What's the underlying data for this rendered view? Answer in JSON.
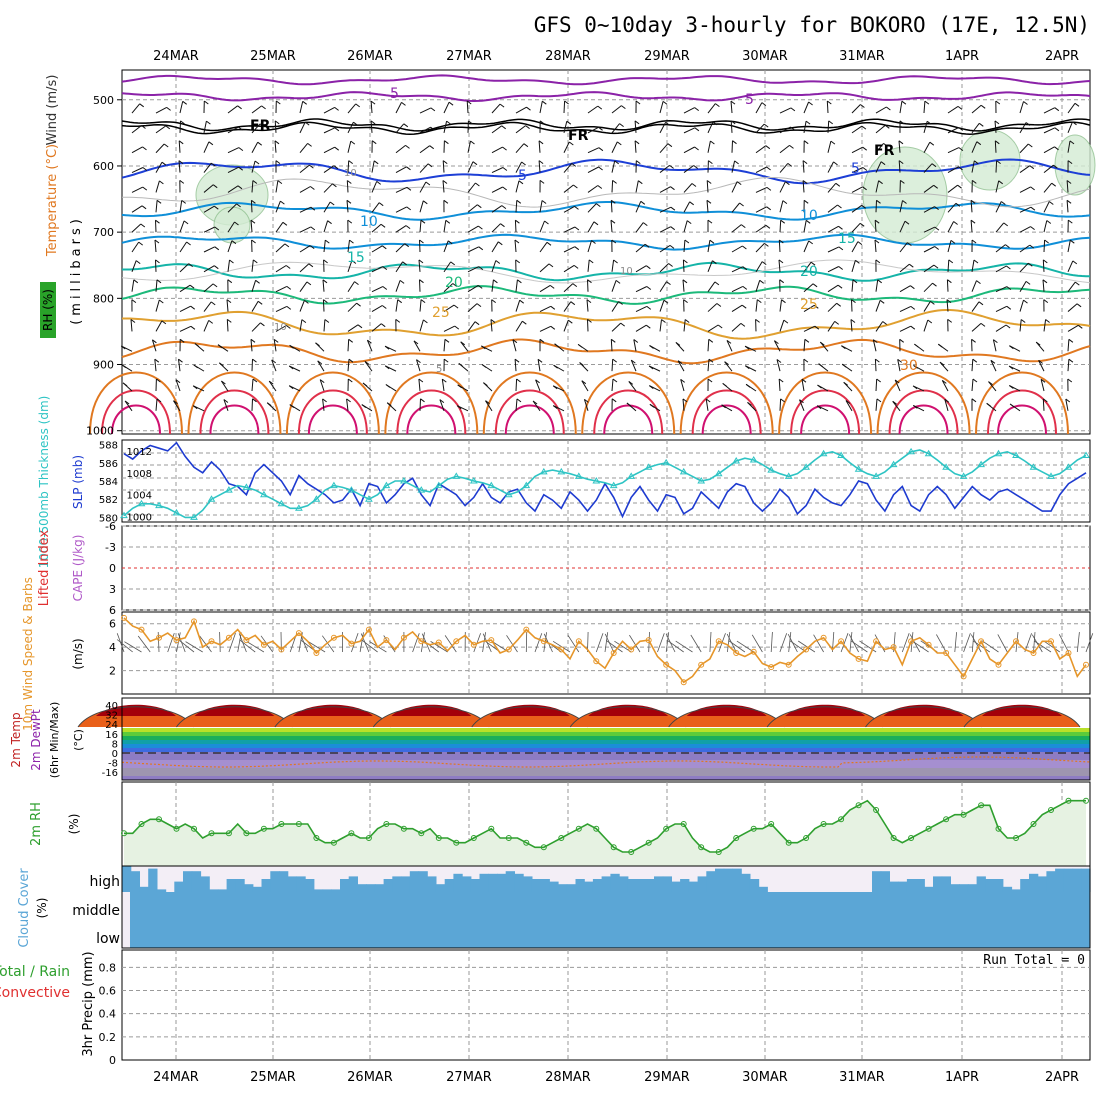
{
  "title": "GFS 0~10day 3-hourly for BOKORO (17E, 12.5N)",
  "dates": [
    "24MAR",
    "25MAR",
    "26MAR",
    "27MAR",
    "28MAR",
    "29MAR",
    "30MAR",
    "31MAR",
    "1APR",
    "2APR"
  ],
  "colors": {
    "purple": "#8B22A8",
    "black": "#000000",
    "blue": "#1D3FD6",
    "lightblue": "#0F8FD8",
    "teal": "#15B4A8",
    "green": "#1CB97A",
    "orange": "#E0A030",
    "darkorange": "#E07820",
    "red": "#E0304A",
    "magenta": "#D01070",
    "slp": "#1E3BD0",
    "thickness": "#2EC4C4",
    "wind": "#E6962A",
    "rh": "#2E9F2E",
    "cloud": "#5BA6D6",
    "grid": "#9a9a9a"
  },
  "panels": {
    "upper": {
      "ylabels": [
        "Wind (m/s)",
        "Temperature (°C)",
        "(millibars)",
        "RH (%)"
      ],
      "ticks": [
        "500",
        "600",
        "700",
        "800",
        "900",
        "1000"
      ],
      "contour_labels": [
        "5",
        "FR",
        "FR",
        "FR",
        "5",
        "5",
        "5",
        "10",
        "10",
        "15",
        "15",
        "20",
        "20",
        "25",
        "25",
        "30",
        "10",
        "10",
        "10",
        "5"
      ]
    },
    "slp": {
      "ylabels": [
        "1000-500mb Thickness (dm)",
        "SLP (mb)"
      ],
      "ticks_left": [
        "588",
        "586",
        "584",
        "582",
        "580"
      ],
      "ticks_right": [
        "1012",
        "1008",
        "1004",
        "1000"
      ]
    },
    "li": {
      "ylabels": [
        "Lifted Index",
        "CAPE (J/kg)"
      ],
      "ticks": [
        "-6",
        "-3",
        "0",
        "3",
        "6"
      ]
    },
    "wind": {
      "ylabels": [
        "10m Wind Speed & Barbs",
        "(m/s)"
      ],
      "ticks": [
        "6",
        "4",
        "2"
      ]
    },
    "temp": {
      "ylabels": [
        "2m Temp",
        "2m DewPt",
        "(6hr Min/Max)",
        "(°C)"
      ],
      "ticks": [
        "40",
        "32",
        "24",
        "16",
        "8",
        "0",
        "-8",
        "-16"
      ]
    },
    "rh": {
      "ylabels": [
        "2m RH",
        "(%)"
      ]
    },
    "cloud": {
      "ylabels": [
        "Cloud Cover",
        "(%)"
      ],
      "levels": [
        "high",
        "middle",
        "low"
      ]
    },
    "precip": {
      "ylabels": [
        "Total / Rain",
        "Convective",
        "3hr Precip (mm)"
      ],
      "ticks": [
        "0.8",
        "0.6",
        "0.4",
        "0.2",
        "0"
      ],
      "run_total": "Run Total = 0"
    }
  },
  "chart_data": [
    {
      "type": "line",
      "name": "SLP (mb)",
      "ylim": [
        999,
        1014
      ],
      "values": [
        1011.5,
        1010.5,
        1012.0,
        1013.0,
        1012.5,
        1012.0,
        1013.5,
        1011.0,
        1009.0,
        1008.0,
        1010.0,
        1008.5,
        1006.0,
        1005.5,
        1004.0,
        1008.0,
        1009.5,
        1008.0,
        1006.5,
        1004.0,
        1007.5,
        1006.0,
        1005.0,
        1004.0,
        1002.5,
        1003.0,
        1005.0,
        1002.0,
        1006.0,
        1005.5,
        1002.5,
        1004.0,
        1006.0,
        1007.0,
        1004.0,
        1002.0,
        1006.0,
        1005.0,
        1004.0,
        1002.0,
        1003.5,
        1006.0,
        1003.5,
        1002.5,
        1004.5,
        1005.0,
        1002.5,
        1001.0,
        1004.0,
        1003.0,
        1001.5,
        1004.5,
        1003.0,
        1001.0,
        1003.0,
        1006.0,
        1003.5,
        1000.0,
        1003.5,
        1005.5,
        1003.0,
        1001.0,
        1004.0,
        1003.5,
        1000.5,
        1001.5,
        1004.5,
        1003.0,
        1001.5,
        1004.5,
        1006.0,
        1005.5,
        1002.5,
        1001.0,
        1002.5,
        1005.0,
        1003.5,
        1000.5,
        1002.0,
        1005.0,
        1003.5,
        1002.5,
        1002.0,
        1004.0,
        1006.5,
        1006.0,
        1003.0,
        1001.0,
        1004.0,
        1005.5,
        1002.0,
        1001.0,
        1004.0,
        1005.5,
        1004.0,
        1001.5,
        1003.5,
        1005.5,
        1004.0,
        1003.0,
        1004.5,
        1005.0,
        1004.0,
        1003.0,
        1002.0,
        1001.0,
        1001.0,
        1004.0,
        1006.0,
        1007.0,
        1008.0
      ]
    },
    {
      "type": "line",
      "name": "1000-500mb Thickness (dm)",
      "ylim": [
        579.5,
        588.5
      ],
      "values": [
        580.2,
        581.0,
        581.5,
        581.5,
        581.3,
        581.0,
        580.5,
        580.0,
        580.0,
        580.8,
        582.0,
        582.5,
        583.0,
        583.5,
        583.3,
        583.0,
        582.5,
        582.0,
        581.5,
        581.0,
        581.0,
        581.3,
        582.0,
        583.0,
        583.5,
        583.3,
        583.0,
        582.5,
        582.0,
        582.5,
        583.5,
        584.0,
        584.0,
        583.5,
        583.0,
        582.8,
        583.5,
        584.2,
        584.5,
        584.3,
        584.0,
        583.8,
        583.5,
        583.0,
        582.5,
        582.8,
        583.5,
        584.5,
        585.0,
        585.2,
        585.0,
        584.8,
        584.5,
        584.2,
        584.0,
        583.8,
        583.5,
        583.8,
        584.5,
        585.0,
        585.5,
        585.8,
        586.0,
        585.5,
        585.0,
        584.5,
        584.0,
        584.2,
        584.8,
        585.5,
        586.2,
        586.5,
        586.3,
        585.8,
        585.2,
        584.8,
        584.5,
        584.8,
        585.5,
        586.3,
        587.0,
        587.2,
        586.8,
        586.0,
        585.3,
        584.8,
        584.5,
        585.0,
        585.8,
        586.5,
        587.2,
        587.4,
        587.0,
        586.3,
        585.5,
        584.8,
        584.5,
        585.0,
        585.8,
        586.5,
        587.0,
        587.2,
        586.8,
        586.2,
        585.5,
        585.0,
        584.5,
        584.8,
        585.5,
        586.3,
        586.8
      ]
    },
    {
      "type": "line",
      "name": "10m Wind Speed (m/s)",
      "ylim": [
        0,
        7
      ],
      "values": [
        6.5,
        5.8,
        5.5,
        4.5,
        4.8,
        5.2,
        4.6,
        4.8,
        6.2,
        4.0,
        4.5,
        4.2,
        4.8,
        5.5,
        4.6,
        5.0,
        4.2,
        4.5,
        3.8,
        4.5,
        5.2,
        4.5,
        3.5,
        4.2,
        4.8,
        5.0,
        4.3,
        4.5,
        5.5,
        4.0,
        4.6,
        3.8,
        4.8,
        5.3,
        4.5,
        4.2,
        4.4,
        3.7,
        4.5,
        5.0,
        4.2,
        4.5,
        4.6,
        3.5,
        3.8,
        4.6,
        5.5,
        4.8,
        4.5,
        4.2,
        3.8,
        3.0,
        4.5,
        3.8,
        2.8,
        2.2,
        3.5,
        4.5,
        3.8,
        4.5,
        4.6,
        3.2,
        2.5,
        2.0,
        1.0,
        1.5,
        2.5,
        3.0,
        4.5,
        4.2,
        3.5,
        3.2,
        3.6,
        2.6,
        2.3,
        2.7,
        2.5,
        3.2,
        3.8,
        4.5,
        4.8,
        3.8,
        4.5,
        3.5,
        3.0,
        2.8,
        4.5,
        3.8,
        4.0,
        2.5,
        4.5,
        4.8,
        4.2,
        3.5,
        3.5,
        2.5,
        1.5,
        3.0,
        4.5,
        3.0,
        2.5,
        3.5,
        4.5,
        3.8,
        3.5,
        4.5,
        4.5,
        3.0,
        3.5,
        1.5,
        2.5
      ]
    },
    {
      "type": "line",
      "name": "2m RH (%)",
      "ylim": [
        0,
        90
      ],
      "values": [
        35,
        35,
        45,
        50,
        50,
        45,
        40,
        45,
        40,
        30,
        35,
        35,
        35,
        45,
        35,
        35,
        40,
        40,
        45,
        45,
        45,
        45,
        30,
        25,
        25,
        30,
        35,
        30,
        30,
        40,
        45,
        45,
        40,
        40,
        35,
        40,
        30,
        30,
        25,
        25,
        30,
        35,
        40,
        30,
        30,
        30,
        25,
        20,
        20,
        25,
        30,
        35,
        40,
        45,
        40,
        30,
        20,
        15,
        15,
        20,
        25,
        30,
        40,
        45,
        45,
        30,
        20,
        15,
        15,
        20,
        30,
        35,
        40,
        40,
        45,
        35,
        25,
        25,
        30,
        40,
        45,
        45,
        50,
        60,
        65,
        70,
        60,
        45,
        30,
        25,
        30,
        35,
        40,
        45,
        50,
        55,
        55,
        60,
        65,
        65,
        40,
        30,
        30,
        35,
        45,
        55,
        60,
        65,
        70,
        70,
        70
      ],
      "ylabel": "2m RH"
    }
  ]
}
